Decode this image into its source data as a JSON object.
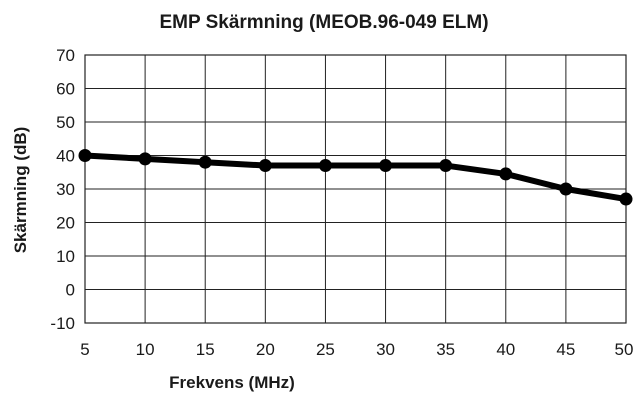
{
  "chart_data": {
    "type": "line",
    "title": "EMP Skärmning (MEOB.96-049 ELM)",
    "xlabel": "Frekvens (MHz)",
    "ylabel": "Skärmning (dB)",
    "xlim": [
      5,
      50
    ],
    "ylim": [
      -10,
      70
    ],
    "xticks": [
      "5",
      "10",
      "15",
      "20",
      "25",
      "30",
      "35",
      "40",
      "45",
      "50"
    ],
    "yticks": [
      "-10",
      "0",
      "10",
      "20",
      "30",
      "40",
      "50",
      "60",
      "70"
    ],
    "grid": true,
    "series": [
      {
        "x": [
          5,
          10,
          15,
          20,
          25,
          30,
          35,
          40,
          45,
          50
        ],
        "values": [
          40,
          39,
          38,
          37,
          37,
          37,
          37,
          34.5,
          30,
          27
        ],
        "color": "#000000"
      }
    ]
  }
}
